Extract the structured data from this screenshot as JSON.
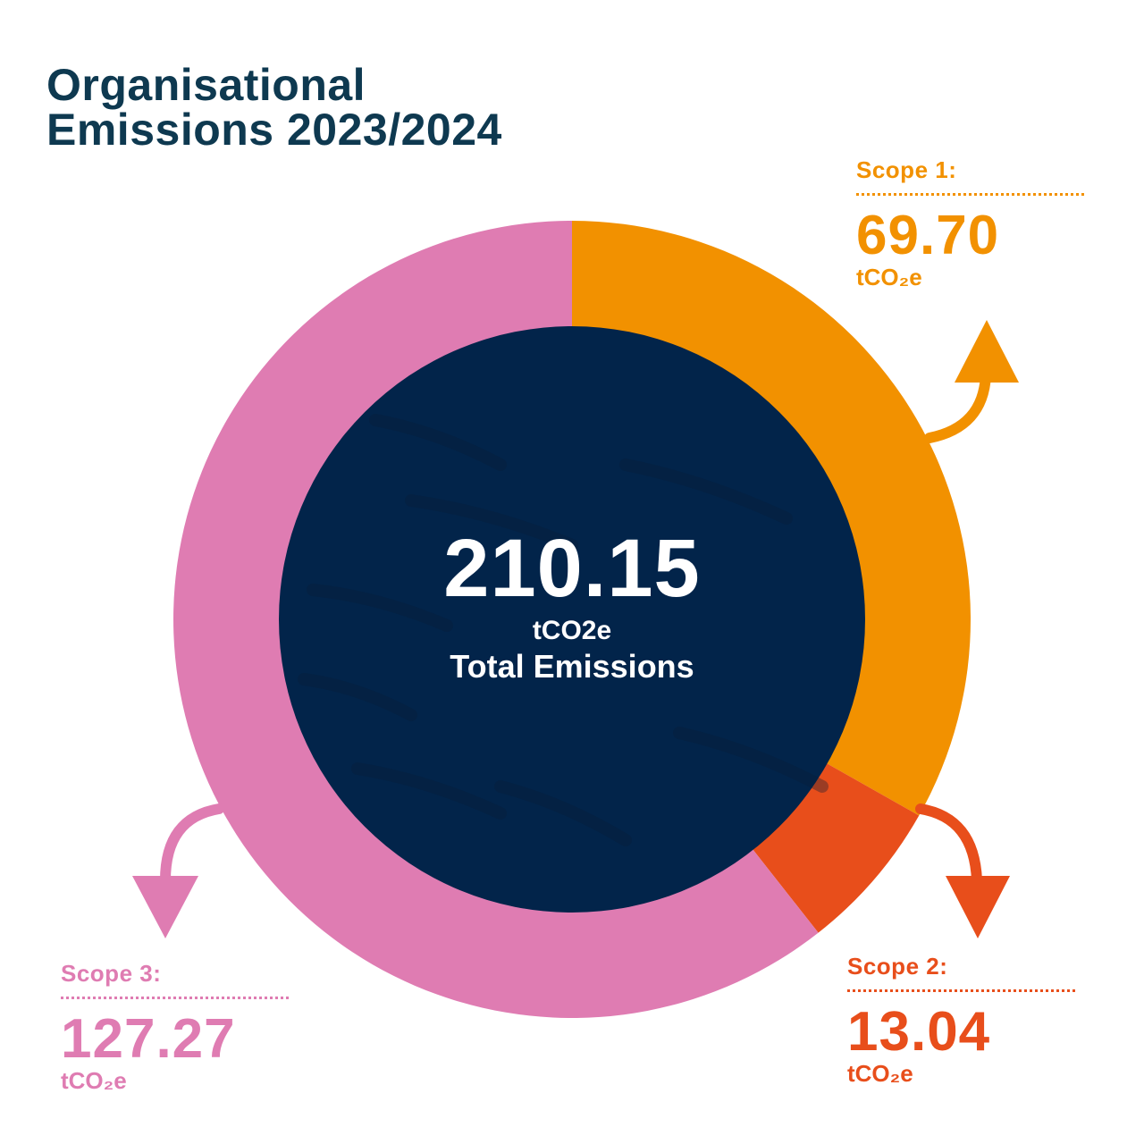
{
  "title": {
    "line1": "Organisational",
    "line2": "Emissions 2023/2024"
  },
  "center": {
    "total": "210.15",
    "unit": "tCO2e",
    "caption": "Total Emissions"
  },
  "labels": [
    {
      "scope": "Scope 1:",
      "value": "69.70",
      "unit": "tCO₂e"
    },
    {
      "scope": "Scope 2:",
      "value": "13.04",
      "unit": "tCO₂e"
    },
    {
      "scope": "Scope 3:",
      "value": "127.27",
      "unit": "tCO₂e"
    }
  ],
  "chart_data": {
    "type": "pie",
    "title": "Organisational Emissions 2023/2024",
    "categories": [
      "Scope 1:",
      "Scope 2:",
      "Scope 3:"
    ],
    "values": [
      69.7,
      13.04,
      127.27
    ],
    "total": 210.15,
    "unit": "tCO₂e",
    "colors": [
      "#f29100",
      "#e84e1b",
      "#df7cb2"
    ],
    "center_color": "#02244a"
  }
}
